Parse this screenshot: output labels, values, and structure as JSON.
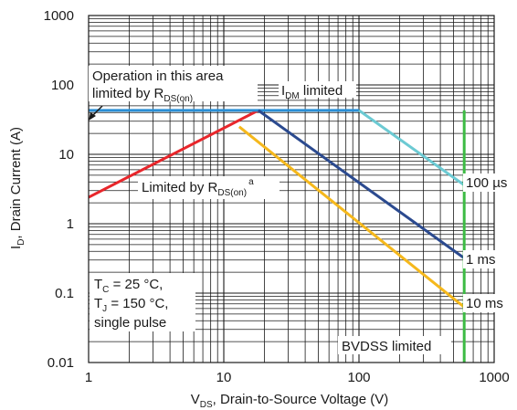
{
  "chart_data": {
    "type": "line",
    "xlabel": {
      "main": "V",
      "sub": "DS",
      "rest": ", Drain-to-Source Voltage (V)"
    },
    "ylabel": {
      "main": "I",
      "sub": "D",
      "rest": ", Drain Current (A)"
    },
    "xscale": "log",
    "yscale": "log",
    "xlim": [
      1,
      1000
    ],
    "ylim": [
      0.01,
      1000
    ],
    "x_ticks": [
      {
        "value": 1,
        "label": "1"
      },
      {
        "value": 10,
        "label": "10"
      },
      {
        "value": 100,
        "label": "100"
      },
      {
        "value": 1000,
        "label": "1000"
      }
    ],
    "y_ticks": [
      {
        "value": 1000,
        "label": "1000"
      },
      {
        "value": 100,
        "label": "100"
      },
      {
        "value": 10,
        "label": "10"
      },
      {
        "value": 1,
        "label": "1"
      },
      {
        "value": 0.1,
        "label": "0.1"
      },
      {
        "value": 0.01,
        "label": "0.01"
      }
    ],
    "grid": true,
    "series": [
      {
        "name": "",
        "color": "#e8262b",
        "points": [
          [
            1,
            2.4
          ],
          [
            18,
            43
          ]
        ]
      },
      {
        "name": "",
        "color": "#2a8fd6",
        "points": [
          [
            1,
            43
          ],
          [
            100,
            43
          ]
        ]
      },
      {
        "name": "100 µs",
        "color": "#6ccad3",
        "points": [
          [
            100,
            43
          ],
          [
            600,
            3.6
          ]
        ]
      },
      {
        "name": "1 ms",
        "color": "#2b4a8f",
        "points": [
          [
            18,
            43
          ],
          [
            600,
            0.32
          ]
        ]
      },
      {
        "name": "10 ms",
        "color": "#f5b81c",
        "points": [
          [
            13,
            25
          ],
          [
            600,
            0.063
          ]
        ]
      },
      {
        "name": "",
        "color": "#3dbb44",
        "points": [
          [
            600,
            43
          ],
          [
            600,
            0.01
          ]
        ]
      }
    ],
    "annotations": {
      "operation_line1": "Operation in this area",
      "operation_line2_pre": "limited by R",
      "operation_line2_sub": "DS(on)",
      "idm_main": "I",
      "idm_sub": "DM",
      "idm_rest": " limited",
      "rds_pre": "Limited by R",
      "rds_sub": "DS(on)",
      "rds_sup": "a",
      "tc_main": "T",
      "tc_sub": "C",
      "tc_rest": " = 25 °C,",
      "tj_main": "T",
      "tj_sub": "J",
      "tj_rest": " = 150 °C,",
      "single_pulse": "single pulse",
      "bvdss": "BVDSS limited"
    }
  }
}
